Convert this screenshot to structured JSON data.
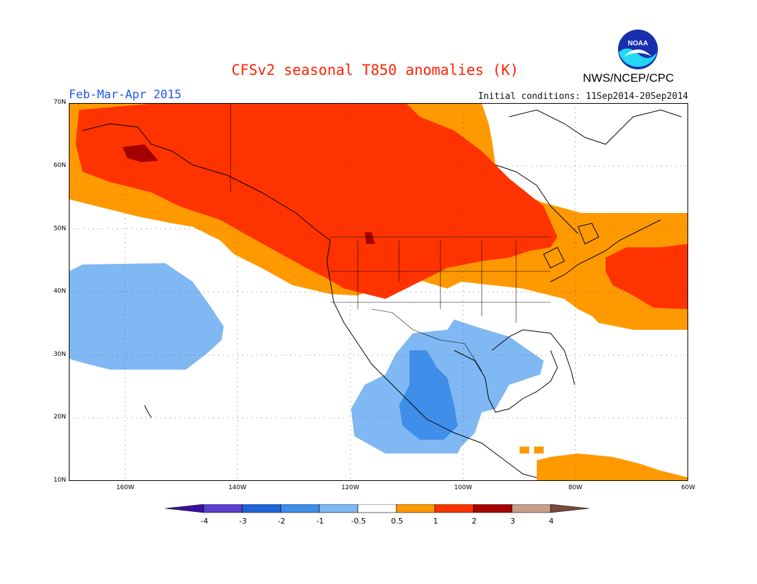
{
  "header": {
    "title": "CFSv2 seasonal T850 anomalies (K)",
    "period": "Feb-Mar-Apr 2015",
    "initial_conditions": "Initial conditions: 11Sep2014-20Sep2014",
    "agency": "NWS/NCEP/CPC",
    "logo_text": "NOAA"
  },
  "map": {
    "lat_labels": [
      "70N",
      "60N",
      "50N",
      "40N",
      "30N",
      "20N",
      "10N"
    ],
    "lon_labels": [
      "160W",
      "140W",
      "120W",
      "100W",
      "80W",
      "60W"
    ],
    "extent": {
      "lon_min": -171,
      "lon_max": -60,
      "lat_min": 10,
      "lat_max": 70
    }
  },
  "legend": {
    "labels": [
      "-4",
      "-3",
      "-2",
      "-1",
      "-0.5",
      "0.5",
      "1",
      "2",
      "3",
      "4"
    ],
    "colors": [
      "#3b0fa0",
      "#5a3fd0",
      "#1f66d8",
      "#3f8fea",
      "#7fb8f2",
      "#ffffff",
      "#ff9900",
      "#ff3300",
      "#a50000",
      "#c8a08a",
      "#7a4a3a"
    ]
  }
}
